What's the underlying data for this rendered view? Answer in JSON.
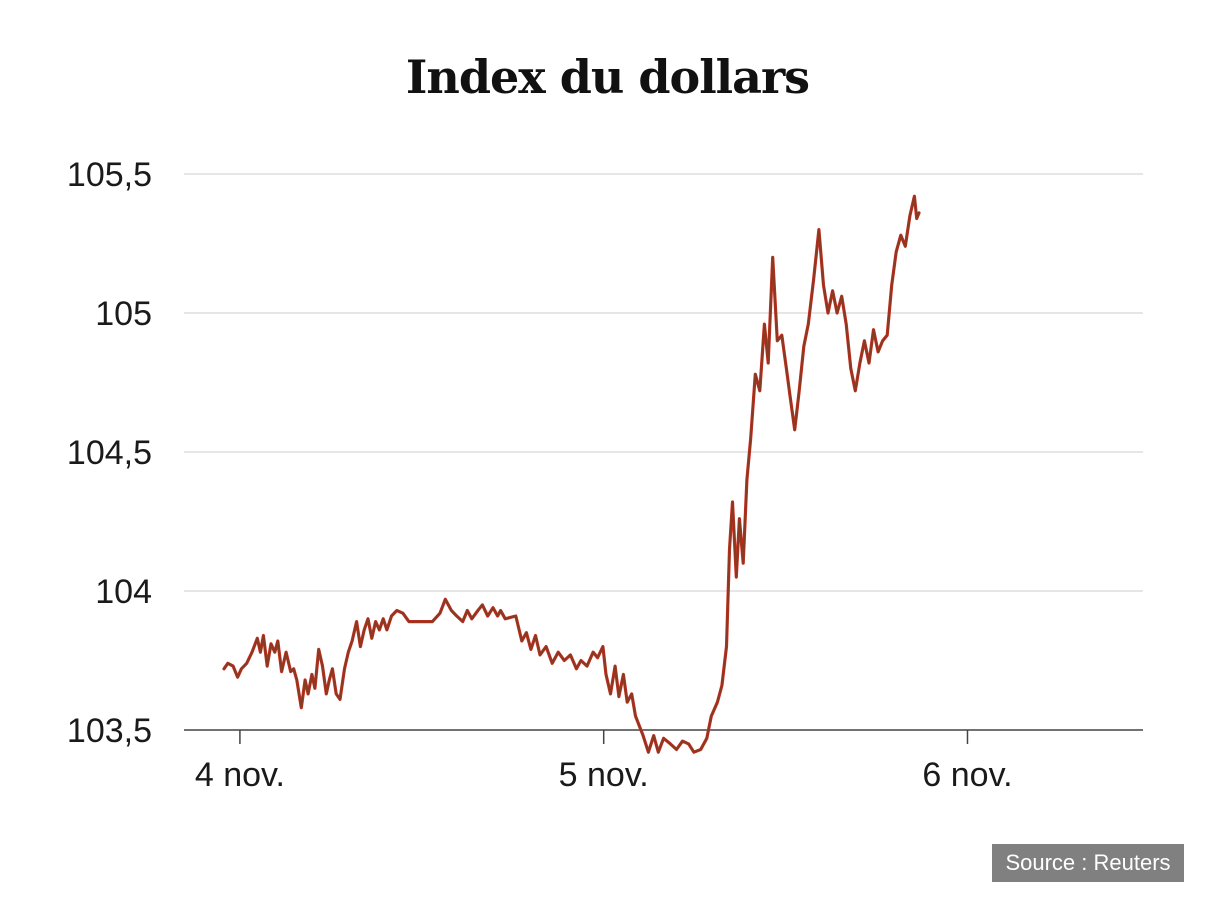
{
  "chart_data": {
    "type": "line",
    "title": "Index du dollars",
    "xlabel": "",
    "ylabel": "",
    "x_ticks": [
      {
        "label": "4 nov.",
        "x": 0
      },
      {
        "label": "5 nov.",
        "x": 24
      },
      {
        "label": "6 nov.",
        "x": 48
      }
    ],
    "y_ticks": [
      {
        "label": "105,5",
        "value": 105.5
      },
      {
        "label": "105",
        "value": 105.0
      },
      {
        "label": "104,5",
        "value": 104.5
      },
      {
        "label": "104",
        "value": 104.0
      },
      {
        "label": "103,5",
        "value": 103.5
      }
    ],
    "xlim": [
      -1.05,
      57.6
    ],
    "ylim": [
      103.5,
      105.5
    ],
    "grid": true,
    "colors": {
      "line": "#8a3a22",
      "volatile": "#dd2a1f",
      "grid": "#dddddd",
      "axis": "#444444"
    },
    "series": [
      {
        "values": [
          [
            -1.05,
            103.72
          ],
          [
            -0.8,
            103.74
          ],
          [
            -0.45,
            103.73
          ],
          [
            -0.15,
            103.69
          ],
          [
            0.1,
            103.72
          ],
          [
            0.45,
            103.74
          ],
          [
            0.8,
            103.78
          ],
          [
            1.15,
            103.83
          ],
          [
            1.35,
            103.78
          ],
          [
            1.55,
            103.84
          ],
          [
            1.8,
            103.73
          ],
          [
            2.05,
            103.81
          ],
          [
            2.3,
            103.78
          ],
          [
            2.5,
            103.82
          ],
          [
            2.75,
            103.71
          ],
          [
            3.05,
            103.78
          ],
          [
            3.35,
            103.71
          ],
          [
            3.55,
            103.72
          ],
          [
            3.75,
            103.68
          ],
          [
            4.05,
            103.58
          ],
          [
            4.3,
            103.68
          ],
          [
            4.5,
            103.63
          ],
          [
            4.75,
            103.7
          ],
          [
            4.95,
            103.65
          ],
          [
            5.2,
            103.79
          ],
          [
            5.45,
            103.73
          ],
          [
            5.7,
            103.63
          ],
          [
            5.9,
            103.68
          ],
          [
            6.1,
            103.72
          ],
          [
            6.35,
            103.63
          ],
          [
            6.6,
            103.61
          ],
          [
            6.9,
            103.72
          ],
          [
            7.15,
            103.78
          ],
          [
            7.4,
            103.82
          ],
          [
            7.7,
            103.89
          ],
          [
            7.95,
            103.8
          ],
          [
            8.2,
            103.86
          ],
          [
            8.45,
            103.9
          ],
          [
            8.7,
            103.83
          ],
          [
            8.95,
            103.89
          ],
          [
            9.2,
            103.86
          ],
          [
            9.45,
            103.9
          ],
          [
            9.7,
            103.86
          ],
          [
            10.0,
            103.91
          ],
          [
            10.35,
            103.93
          ],
          [
            10.75,
            103.92
          ],
          [
            11.15,
            103.89
          ],
          [
            12.1,
            103.89
          ],
          [
            12.7,
            103.89
          ],
          [
            13.2,
            103.92
          ],
          [
            13.55,
            103.97
          ],
          [
            13.95,
            103.93
          ],
          [
            14.3,
            103.91
          ],
          [
            14.7,
            103.89
          ],
          [
            15.0,
            103.93
          ],
          [
            15.3,
            103.9
          ],
          [
            15.7,
            103.93
          ],
          [
            16.0,
            103.95
          ],
          [
            16.35,
            103.91
          ],
          [
            16.7,
            103.94
          ],
          [
            17.0,
            103.91
          ],
          [
            17.2,
            103.93
          ],
          [
            17.5,
            103.9
          ],
          [
            18.2,
            103.91
          ],
          [
            18.6,
            103.82
          ],
          [
            18.9,
            103.85
          ],
          [
            19.2,
            103.79
          ],
          [
            19.5,
            103.84
          ],
          [
            19.8,
            103.77
          ],
          [
            20.2,
            103.8
          ],
          [
            20.6,
            103.74
          ],
          [
            21.0,
            103.78
          ],
          [
            21.4,
            103.75
          ],
          [
            21.8,
            103.77
          ],
          [
            22.2,
            103.72
          ],
          [
            22.5,
            103.75
          ],
          [
            22.9,
            103.73
          ],
          [
            23.3,
            103.78
          ],
          [
            23.6,
            103.76
          ],
          [
            23.95,
            103.8
          ],
          [
            24.15,
            103.7
          ],
          [
            24.45,
            103.63
          ],
          [
            24.75,
            103.73
          ],
          [
            25.0,
            103.62
          ],
          [
            25.3,
            103.7
          ],
          [
            25.55,
            103.6
          ],
          [
            25.85,
            103.63
          ],
          [
            26.1,
            103.55
          ],
          [
            26.6,
            103.48
          ],
          [
            26.95,
            103.42
          ],
          [
            27.3,
            103.48
          ],
          [
            27.6,
            103.42
          ],
          [
            27.95,
            103.47
          ],
          [
            28.4,
            103.45
          ],
          [
            28.8,
            103.43
          ],
          [
            29.2,
            103.46
          ],
          [
            29.6,
            103.45
          ],
          [
            29.95,
            103.42
          ],
          [
            30.4,
            103.43
          ],
          [
            30.8,
            103.47
          ],
          [
            31.1,
            103.55
          ],
          [
            31.5,
            103.6
          ],
          [
            31.8,
            103.66
          ],
          [
            32.1,
            103.8
          ],
          [
            32.3,
            104.15
          ],
          [
            32.5,
            104.32
          ],
          [
            32.75,
            104.05
          ],
          [
            32.95,
            104.26
          ],
          [
            33.2,
            104.1
          ],
          [
            33.45,
            104.4
          ],
          [
            33.7,
            104.55
          ],
          [
            34.0,
            104.78
          ],
          [
            34.3,
            104.72
          ],
          [
            34.6,
            104.96
          ],
          [
            34.85,
            104.82
          ],
          [
            35.15,
            105.2
          ],
          [
            35.45,
            104.9
          ],
          [
            35.75,
            104.92
          ],
          [
            36.05,
            104.8
          ],
          [
            36.3,
            104.7
          ],
          [
            36.6,
            104.58
          ],
          [
            36.9,
            104.72
          ],
          [
            37.2,
            104.88
          ],
          [
            37.5,
            104.96
          ],
          [
            37.85,
            105.12
          ],
          [
            38.2,
            105.3
          ],
          [
            38.5,
            105.1
          ],
          [
            38.8,
            105.0
          ],
          [
            39.1,
            105.08
          ],
          [
            39.4,
            105.0
          ],
          [
            39.7,
            105.06
          ],
          [
            40.0,
            104.96
          ],
          [
            40.3,
            104.8
          ],
          [
            40.6,
            104.72
          ],
          [
            40.9,
            104.82
          ],
          [
            41.2,
            104.9
          ],
          [
            41.5,
            104.82
          ],
          [
            41.8,
            104.94
          ],
          [
            42.1,
            104.86
          ],
          [
            42.4,
            104.9
          ],
          [
            42.7,
            104.92
          ],
          [
            43.0,
            105.1
          ],
          [
            43.3,
            105.22
          ],
          [
            43.6,
            105.28
          ],
          [
            43.9,
            105.24
          ],
          [
            44.2,
            105.35
          ],
          [
            44.5,
            105.42
          ],
          [
            44.65,
            105.34
          ],
          [
            44.8,
            105.36
          ]
        ]
      }
    ]
  },
  "source": {
    "label": "Source : Reuters"
  }
}
